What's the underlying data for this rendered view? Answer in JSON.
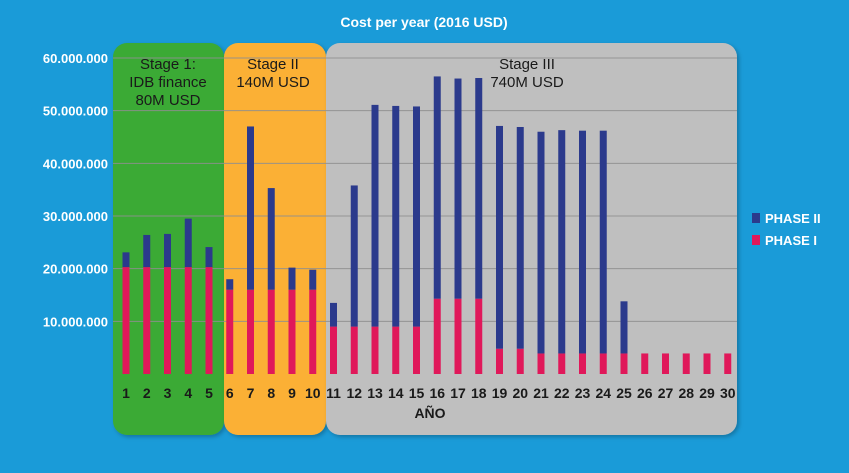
{
  "chart_data": {
    "type": "bar",
    "stacked": true,
    "title": "Cost per year (2016 USD)",
    "xlabel": "AÑO",
    "ylabel": "",
    "ylim": [
      0,
      60000000
    ],
    "yticks": [
      10000000,
      20000000,
      30000000,
      40000000,
      50000000,
      60000000
    ],
    "ytick_labels": [
      "10.000.000",
      "20.000.000",
      "30.000.000",
      "40.000.000",
      "50.000.000",
      "60.000.000"
    ],
    "categories": [
      "1",
      "2",
      "3",
      "4",
      "5",
      "6",
      "7",
      "8",
      "9",
      "10",
      "11",
      "12",
      "13",
      "14",
      "15",
      "16",
      "17",
      "18",
      "19",
      "20",
      "21",
      "22",
      "23",
      "24",
      "25",
      "26",
      "27",
      "28",
      "29",
      "30"
    ],
    "series": [
      {
        "name": "PHASE I",
        "color": "#e0185a",
        "values": [
          20300000,
          20300000,
          20300000,
          20300000,
          20300000,
          16000000,
          16000000,
          16000000,
          16000000,
          16000000,
          9000000,
          9000000,
          9000000,
          9000000,
          9000000,
          14300000,
          14300000,
          14300000,
          4800000,
          4800000,
          3900000,
          3900000,
          3900000,
          3900000,
          3900000,
          3900000,
          3900000,
          3900000,
          3900000,
          3900000
        ]
      },
      {
        "name": "PHASE II",
        "color": "#2b3a8c",
        "values": [
          2800000,
          6100000,
          6300000,
          9200000,
          3800000,
          2000000,
          31000000,
          19300000,
          4200000,
          3800000,
          4500000,
          26800000,
          42100000,
          41900000,
          41800000,
          42200000,
          41800000,
          41900000,
          42300000,
          42100000,
          42100000,
          42400000,
          42300000,
          42300000,
          9900000,
          0,
          0,
          0,
          0,
          0
        ]
      }
    ],
    "legend": {
      "position": "right",
      "items": [
        "PHASE II",
        "PHASE I"
      ]
    },
    "grid": true,
    "stages": [
      {
        "lines": [
          "Stage 1:",
          "IDB finance",
          "80M USD"
        ],
        "color": "#3aaa35",
        "from": 1,
        "to": 5
      },
      {
        "lines": [
          "Stage II",
          "140M USD"
        ],
        "color": "#fbb034",
        "from": 6,
        "to": 10
      },
      {
        "lines": [
          "Stage III",
          "740M USD"
        ],
        "color": "#bfbfbf",
        "from": 11,
        "to": 30
      }
    ]
  }
}
